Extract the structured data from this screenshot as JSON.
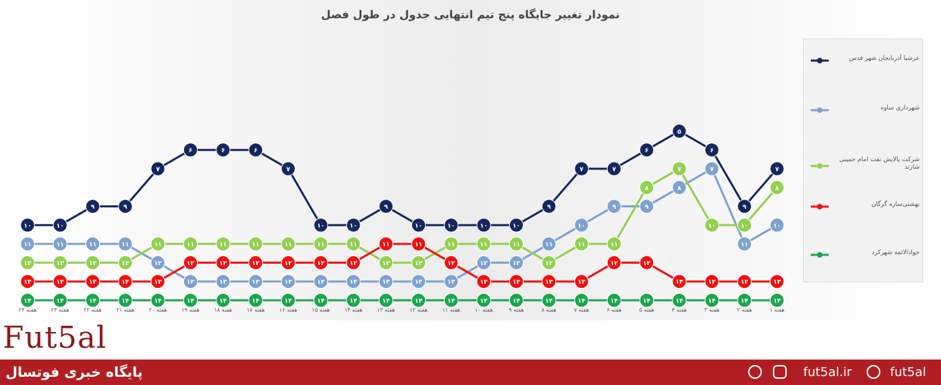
{
  "chart_data": {
    "type": "line",
    "title": "نمودار تغییر جایگاه پنج تیم انتهایی جدول در طول فصل",
    "categories": [
      "هفته ۱",
      "هفته ۲",
      "هفته ۳",
      "هفته ۴",
      "هفته ۵",
      "هفته ۶",
      "هفته ۷",
      "هفته ۸",
      "هفته ۹",
      "هفته ۱۰",
      "هفته ۱۱",
      "هفته ۱۲",
      "هفته ۱۳",
      "هفته ۱۴",
      "هفته ۱۵",
      "هفته ۱۶",
      "هفته ۱۷",
      "هفته ۱۸",
      "هفته ۱۹",
      "هفته ۲۰",
      "هفته ۲۱",
      "هفته ۲۲",
      "هفته ۲۳",
      "هفته ۲۴"
    ],
    "x_reversed": true,
    "ylim": [
      14,
      0
    ],
    "yticks": [
      0,
      1,
      2,
      3,
      4,
      5,
      6,
      7,
      8,
      9,
      10,
      11,
      12,
      13,
      14
    ],
    "grid": true,
    "legend": "right",
    "series": [
      {
        "name": "عرشیا آذربایجان شهر قدس",
        "color": "#14285f",
        "values": [
          7,
          9,
          6,
          5,
          6,
          7,
          7,
          9,
          10,
          10,
          10,
          10,
          9,
          10,
          10,
          7,
          6,
          6,
          6,
          7,
          9,
          9,
          10,
          10
        ],
        "value_labels": [
          "۷",
          "۹",
          "۶",
          "۵",
          "۶",
          "۷",
          "۷",
          "۹",
          "۱۰",
          "۱۰",
          "۱۰",
          "۱۰",
          "۹",
          "۱۰",
          "۱۰",
          "۷",
          "۶",
          "۶",
          "۶",
          "۷",
          "۹",
          "۹",
          "۱۰",
          "۱۰"
        ]
      },
      {
        "name": "شهرداری ساوه",
        "color": "#7ea1d0",
        "values": [
          10,
          11,
          7,
          8,
          9,
          9,
          10,
          11,
          12,
          12,
          13,
          13,
          13,
          13,
          13,
          13,
          13,
          13,
          13,
          12,
          11,
          11,
          11,
          11
        ],
        "value_labels": [
          "۱۰",
          "۱۱",
          "۷",
          "۸",
          "۹",
          "۹",
          "۱۰",
          "۱۱",
          "۱۲",
          "۱۲",
          "۱۳",
          "۱۳",
          "۱۳",
          "۱۳",
          "۱۳",
          "۱۳",
          "۱۳",
          "۱۳",
          "۱۳",
          "۱۲",
          "۱۱",
          "۱۱",
          "۱۱",
          "۱۱"
        ]
      },
      {
        "name": "شرکت پالایش نفت امام خمینی شازند",
        "color": "#92d050",
        "values": [
          8,
          10,
          10,
          7,
          8,
          11,
          11,
          12,
          11,
          11,
          11,
          12,
          12,
          11,
          11,
          11,
          11,
          11,
          11,
          11,
          12,
          12,
          12,
          12
        ],
        "value_labels": [
          "۸",
          "۱۰",
          "۱۰",
          "۷",
          "۸",
          "۱۱",
          "۱۱",
          "۱۲",
          "۱۱",
          "۱۱",
          "۱۱",
          "۱۲",
          "۱۲",
          "۱۱",
          "۱۱",
          "۱۱",
          "۱۱",
          "۱۱",
          "۱۱",
          "۱۱",
          "۱۲",
          "۱۲",
          "۱۲",
          "۱۲"
        ]
      },
      {
        "name": "بهشتی‌سازه گرگان",
        "color": "#ee1111",
        "values": [
          13,
          13,
          13,
          13,
          12,
          12,
          13,
          13,
          13,
          13,
          12,
          11,
          11,
          12,
          12,
          12,
          12,
          12,
          12,
          13,
          13,
          13,
          13,
          13
        ],
        "value_labels": [
          "۱۳",
          "۱۳",
          "۱۳",
          "۱۳",
          "۱۲",
          "۱۲",
          "۱۳",
          "۱۳",
          "۱۳",
          "۱۳",
          "۱۲",
          "۱۱",
          "۱۱",
          "۱۲",
          "۱۲",
          "۱۲",
          "۱۲",
          "۱۲",
          "۱۲",
          "۱۳",
          "۱۳",
          "۱۳",
          "۱۳",
          "۱۳"
        ]
      },
      {
        "name": "جوادالائمه شهرکرد",
        "color": "#1aa64a",
        "values": [
          14,
          14,
          14,
          14,
          14,
          14,
          14,
          14,
          14,
          14,
          14,
          14,
          14,
          14,
          14,
          14,
          14,
          14,
          14,
          14,
          14,
          14,
          14,
          14
        ],
        "value_labels": [
          "۱۴",
          "۱۴",
          "۱۴",
          "۱۴",
          "۱۴",
          "۱۴",
          "۱۴",
          "۱۴",
          "۱۴",
          "۱۴",
          "۱۴",
          "۱۴",
          "۱۴",
          "۱۴",
          "۱۴",
          "۱۴",
          "۱۴",
          "۱۴",
          "۱۴",
          "۱۴",
          "۱۴",
          "۱۴",
          "۱۴",
          "۱۴"
        ]
      }
    ]
  },
  "footer": {
    "logo": "Fut5al",
    "banner_title": "پایگاه خبری فوتسال",
    "site": "fut5al.ir",
    "handle": "fut5al"
  }
}
